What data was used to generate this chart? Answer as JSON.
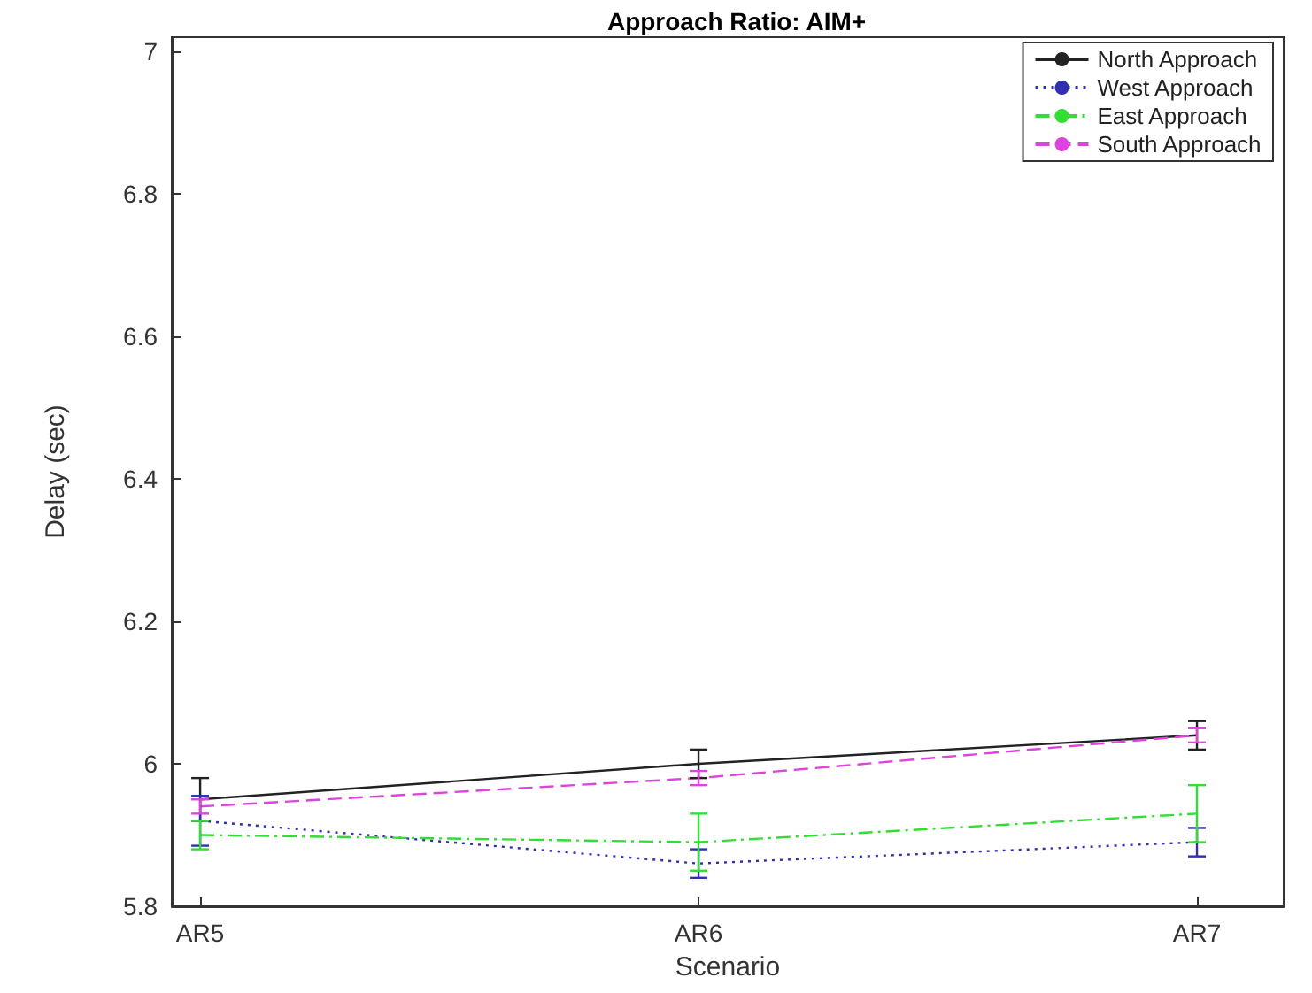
{
  "chart_data": {
    "type": "line",
    "title": "Approach Ratio: AIM+",
    "xlabel": "Scenario",
    "ylabel": "Delay (sec)",
    "categories": [
      "AR5",
      "AR6",
      "AR7"
    ],
    "ylim": [
      5.8,
      7.02
    ],
    "yticks": [
      5.8,
      6,
      6.2,
      6.4,
      6.6,
      6.8,
      7
    ],
    "grid": false,
    "legend": "top right",
    "marker": "none",
    "series": [
      {
        "name": "North Approach",
        "color": "#222222",
        "line_style": "solid",
        "values": [
          5.95,
          6.0,
          6.04
        ],
        "errors": [
          0.03,
          0.02,
          0.02
        ]
      },
      {
        "name": "West Approach",
        "color": "#3030b0",
        "line_style": "dotted",
        "values": [
          5.92,
          5.86,
          5.89
        ],
        "errors": [
          0.035,
          0.02,
          0.02
        ]
      },
      {
        "name": "East Approach",
        "color": "#33dd33",
        "line_style": "dashdot",
        "values": [
          5.9,
          5.89,
          5.93
        ],
        "errors": [
          0.02,
          0.04,
          0.04
        ]
      },
      {
        "name": "South Approach",
        "color": "#dd44dd",
        "line_style": "dashed",
        "values": [
          5.94,
          5.98,
          6.04
        ],
        "errors": [
          0.01,
          0.01,
          0.01
        ]
      }
    ]
  }
}
